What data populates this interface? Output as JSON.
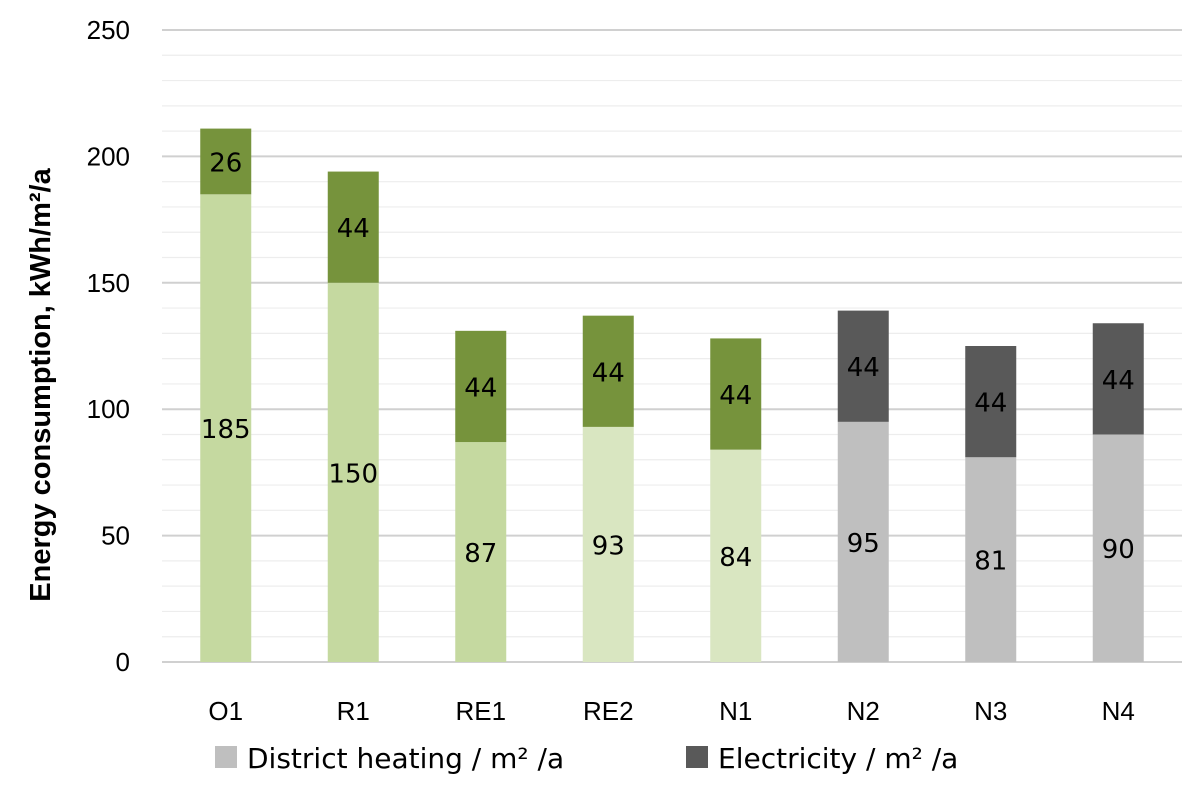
{
  "chart_data": {
    "type": "bar",
    "stacked": true,
    "title": "",
    "xlabel": "",
    "ylabel": "Energy consumption, kWh/m²/a",
    "ylim": [
      0,
      250
    ],
    "yticks": [
      0,
      50,
      100,
      150,
      200,
      250
    ],
    "grid": true,
    "legend_position": "bottom",
    "categories": [
      "O1",
      "R1",
      "RE1",
      "RE2",
      "N1",
      "N2",
      "N3",
      "N4"
    ],
    "series": [
      {
        "name": "District heating / m² /a",
        "values": [
          185,
          150,
          87,
          93,
          84,
          95,
          81,
          90
        ],
        "colors": [
          "#c5d9a0",
          "#c5d9a0",
          "#c5d9a0",
          "#d9e6c1",
          "#d9e6c1",
          "#bfbfbf",
          "#bfbfbf",
          "#bfbfbf"
        ],
        "legend_color": "#bfbfbf"
      },
      {
        "name": "Electricity / m² /a",
        "values": [
          26,
          44,
          44,
          44,
          44,
          44,
          44,
          44
        ],
        "colors": [
          "#76933c",
          "#76933c",
          "#76933c",
          "#76933c",
          "#76933c",
          "#595959",
          "#595959",
          "#595959"
        ],
        "legend_color": "#595959"
      }
    ]
  }
}
